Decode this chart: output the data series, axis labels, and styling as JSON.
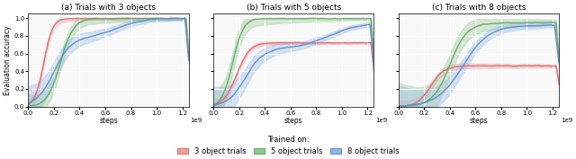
{
  "titles": [
    "(a) Trials with 3 objects",
    "(b) Trials with 5 objects",
    "(c) Trials with 8 objects"
  ],
  "xlabel": "steps",
  "ylabel": "Evaluation accuracy",
  "xlim": [
    0,
    1250000000.0
  ],
  "ylim": [
    0.0,
    1.05
  ],
  "yticks": [
    0.0,
    0.2,
    0.4,
    0.6,
    0.8,
    1.0
  ],
  "xticks": [
    0.0,
    0.2,
    0.4,
    0.6,
    0.8,
    1.0,
    1.2
  ],
  "colors": {
    "red": "#e07070",
    "green": "#6aaa6a",
    "blue": "#6090d0"
  },
  "red_fill": "#f0a0a0",
  "green_fill": "#90c890",
  "blue_fill": "#90b8e8",
  "legend_labels": [
    "3 object trials",
    "5 object trials",
    "8 object trials"
  ],
  "legend_title": "Trained on:",
  "background_color": "#f8f8f8",
  "grid_color": "#ffffff"
}
